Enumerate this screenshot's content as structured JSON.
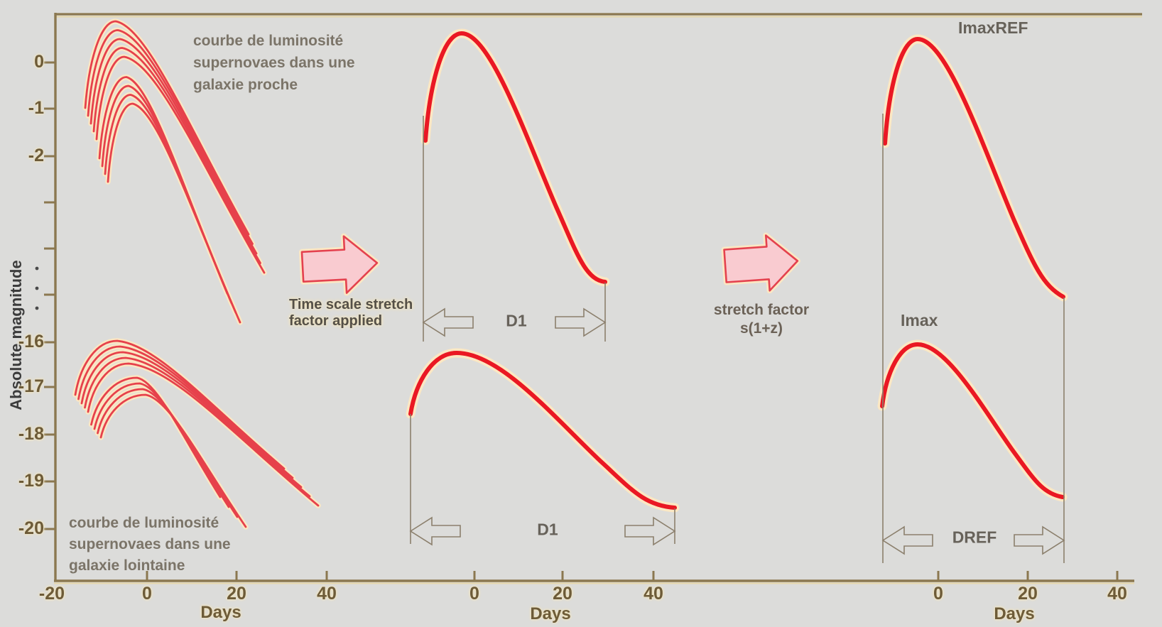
{
  "figure": {
    "y_axis_label": "Absolute magnitude",
    "x_axis_label": "Days",
    "y_ticks_top": [
      "0",
      "-1",
      "-2"
    ],
    "y_ticks_bottom": [
      "-16",
      "-17",
      "-18",
      "-19",
      "-20"
    ],
    "x_ticks_left": [
      "-20",
      "0",
      "20",
      "40"
    ],
    "x_ticks_middle": [
      "0",
      "20",
      "40"
    ],
    "x_ticks_right": [
      "0",
      "20",
      "40"
    ]
  },
  "captions": {
    "nearby": [
      "courbe de luminosité",
      "supernovaes dans une",
      "galaxie proche"
    ],
    "distant": [
      "courbe de luminosité",
      "supernovaes dans une",
      "galaxie lointaine"
    ],
    "arrow1": [
      "Time scale stretch",
      "factor applied"
    ],
    "arrow2": [
      "stretch factor",
      "s(1+z)"
    ]
  },
  "labels": {
    "d1": "D1",
    "dref": "DREF",
    "imax": "Imax",
    "imax_ref": "ImaxREF"
  },
  "colors": {
    "background": "#dcdcda",
    "axis_line": "#8b7850",
    "axis_highlight": "#e6d7ab",
    "tick_text": "#6d5b38",
    "caption_text": "#7b7468",
    "process_caption_text": "#555047",
    "stretch_caption_text": "#6b6156",
    "annotation_text": "#67625a",
    "axis_title_text": "#3c3c3c",
    "curve_red": "#ea1823",
    "cluster_red": "#e6414b",
    "curve_halo": "#fbe7c3",
    "block_arrow_fill": "#f9cbd0",
    "block_arrow_stroke": "#e4414e",
    "measure_line": "#8b7f6c",
    "break_dot": "#4a4a4a"
  },
  "chart_data": [
    {
      "type": "line",
      "panel": "left — observed supernova light-curve families",
      "xlabel": "Days",
      "ylabel": "Absolute magnitude",
      "x_ticks": [
        -20,
        0,
        20,
        40
      ],
      "y_ticks": [
        0,
        -1,
        -2,
        -16,
        -17,
        -18,
        -19,
        -20
      ],
      "y_axis_break": true,
      "grid": false,
      "series": [
        {
          "name": "supernovae in nearby galaxy (~9 curves)",
          "peak_day_range": [
            -7,
            -3
          ],
          "peak_mag_range": [
            0.9,
            -0.9
          ],
          "rise_start_day": -14,
          "tail_end_day_range": [
            18,
            26
          ]
        },
        {
          "name": "supernovae in distant galaxy (~9 curves)",
          "peak_day_range": [
            -7,
            -2
          ],
          "peak_mag_range": [
            -16.0,
            -17.2
          ],
          "rise_start_day": -16,
          "tail_end_day_range": [
            22,
            38
          ]
        }
      ]
    },
    {
      "type": "line",
      "panel": "middle — after time scale stretch factor applied",
      "xlabel": "Days",
      "x_ticks": [
        0,
        20,
        40
      ],
      "series": [
        {
          "name": "nearby-galaxy composite curve",
          "width_label": "D1",
          "width_days": [
            -11,
            29
          ],
          "points_day_mag": [
            [
              -10.8,
              -1.7
            ],
            [
              -2.9,
              0.6
            ],
            [
              13,
              -2.5
            ],
            [
              29,
              -4.7
            ]
          ]
        },
        {
          "name": "distant-galaxy composite curve",
          "width_label": "D1",
          "width_days": [
            -14,
            45
          ],
          "points_day_mag": [
            [
              -14.3,
              -17.6
            ],
            [
              -4,
              -16.2
            ],
            [
              20,
              -18.2
            ],
            [
              44.7,
              -19.6
            ]
          ]
        }
      ]
    },
    {
      "type": "line",
      "panel": "right — after stretch factor s(1+z)",
      "xlabel": "Days",
      "x_ticks": [
        0,
        20,
        40
      ],
      "series": [
        {
          "name": "reference curve",
          "peak_annotation": "ImaxREF",
          "points_day_mag": [
            [
              -11.9,
              -1.8
            ],
            [
              -4.6,
              0.5
            ],
            [
              12,
              -2.6
            ],
            [
              28.1,
              -5.1
            ]
          ]
        },
        {
          "name": "distant curve rescaled to reference width",
          "peak_annotation": "Imax",
          "width_label": "DREF",
          "width_days": [
            -12.5,
            28
          ],
          "points_day_mag": [
            [
              -12.5,
              -17.4
            ],
            [
              -4.6,
              -16.1
            ],
            [
              10,
              -17.6
            ],
            [
              27.9,
              -19.3
            ]
          ]
        }
      ]
    }
  ]
}
